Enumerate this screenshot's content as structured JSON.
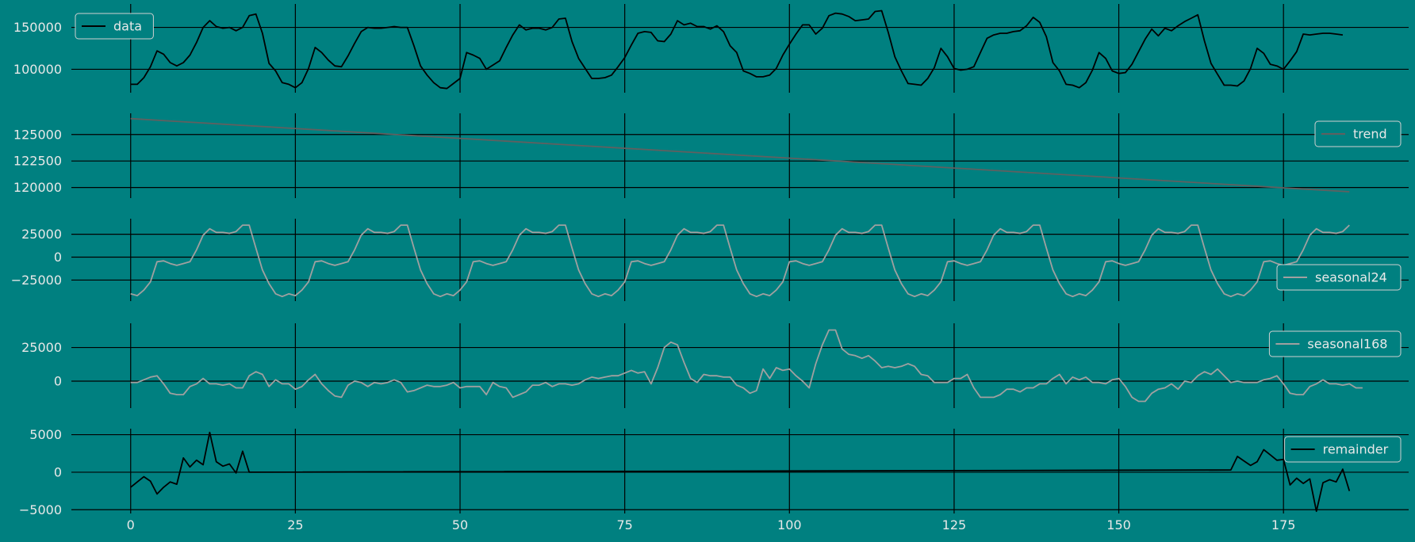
{
  "figure": {
    "background": "#008080",
    "line_color_dark": "#000000",
    "line_color_gray": "#a0a0a0",
    "trend_color": "#606060",
    "text_color": "#e8e8e8"
  },
  "chart_data": [
    {
      "type": "line",
      "series": [
        {
          "name": "data",
          "color": "#000000",
          "values": [
            82000,
            82000,
            90000,
            103000,
            122000,
            118000,
            108000,
            104000,
            108000,
            117000,
            132000,
            150000,
            158000,
            151000,
            149000,
            150000,
            146000,
            150000,
            164000,
            166000,
            143000,
            107000,
            98000,
            84000,
            82000,
            78000,
            84000,
            101000,
            126000,
            120000,
            111000,
            104000,
            103000,
            116000,
            131000,
            145000,
            150000,
            149000,
            149000,
            150000,
            151000,
            150000,
            150000,
            128000,
            104000,
            93000,
            84000,
            78000,
            77000,
            83000,
            89000,
            120000,
            117000,
            113000,
            100000,
            105000,
            110000,
            126000,
            141000,
            153000,
            147000,
            149000,
            149000,
            147000,
            150000,
            160000,
            161000,
            133000,
            113000,
            101000,
            89000,
            89000,
            90000,
            93000,
            103000,
            114000,
            129000,
            143000,
            145000,
            144000,
            134000,
            133000,
            142000,
            158000,
            153000,
            155000,
            151000,
            151000,
            148000,
            152000,
            145000,
            128000,
            120000,
            98000,
            95000,
            91000,
            91000,
            93000,
            101000,
            117000,
            130000,
            142000,
            153000,
            153000,
            142000,
            149000,
            164000,
            167000,
            166000,
            163000,
            158000,
            159000,
            160000,
            169000,
            170000,
            144000,
            115000,
            98000,
            83000,
            82000,
            81000,
            89000,
            102000,
            125000,
            115000,
            101000,
            99000,
            100000,
            103000,
            120000,
            137000,
            141000,
            143000,
            143000,
            145000,
            146000,
            152000,
            162000,
            156000,
            139000,
            108000,
            98000,
            82000,
            81000,
            78000,
            84000,
            99000,
            120000,
            113000,
            98000,
            95000,
            96000,
            106000,
            121000,
            136000,
            148000,
            140000,
            149000,
            146000,
            152000,
            157000,
            161000,
            165000,
            134000,
            107000,
            94000,
            81000,
            81000,
            80000,
            86000,
            101000,
            125000,
            119000,
            106000,
            104000,
            100000,
            110000,
            121000,
            142000,
            141000,
            142000,
            143000,
            143000,
            142000,
            141000
          ]
        }
      ],
      "ylim": [
        72000,
        178000
      ],
      "yticks": [
        100000,
        150000
      ],
      "legend_position": "top-left",
      "grid": true
    },
    {
      "type": "line",
      "series": [
        {
          "name": "trend",
          "color": "#606060",
          "values": [
            126500,
            119600
          ]
        }
      ],
      "ylim": [
        119000,
        127000
      ],
      "yticks": [
        120000,
        122500,
        125000
      ],
      "legend_position": "top-right",
      "grid": true
    },
    {
      "type": "line",
      "series": [
        {
          "name": "seasonal24",
          "color": "#a0a0a0",
          "pattern": [
            -40000,
            -42000,
            -36000,
            -27000,
            -5000,
            -4000,
            -7000,
            -9000,
            -7000,
            -5000,
            8000,
            24000,
            31000,
            27000,
            27000,
            26000,
            28000,
            35000,
            35000,
            10000,
            -14000,
            -29000,
            -40000,
            -43000
          ]
        }
      ],
      "ylim": [
        -48000,
        42000
      ],
      "yticks": [
        -25000,
        0,
        25000
      ],
      "legend_position": "bottom-right",
      "grid": true
    },
    {
      "type": "line",
      "series": [
        {
          "name": "seasonal168",
          "color": "#a0a0a0",
          "values": [
            -1000,
            -1000,
            1000,
            3000,
            4000,
            -2000,
            -9000,
            -10000,
            -10000,
            -4000,
            -2000,
            2000,
            -2000,
            -2000,
            -3000,
            -2000,
            -5000,
            -5000,
            4000,
            7000,
            5000,
            -4000,
            1000,
            -2000,
            -2000,
            -6000,
            -4000,
            1000,
            5000,
            -2000,
            -7000,
            -11000,
            -12000,
            -3000,
            0,
            -1000,
            -4000,
            -1000,
            -2000,
            -1000,
            1000,
            -1000,
            -8000,
            -7000,
            -5000,
            -3000,
            -4000,
            -4000,
            -3000,
            -1000,
            -5000,
            -4000,
            -4000,
            -4000,
            -10000,
            -1000,
            -4000,
            -5000,
            -12000,
            -10000,
            -8000,
            -3000,
            -3000,
            -1000,
            -4000,
            -2000,
            -2000,
            -3000,
            -2000,
            1000,
            3000,
            2000,
            3000,
            4000,
            4000,
            6000,
            8000,
            6000,
            7000,
            -2000,
            10000,
            25000,
            29000,
            27000,
            14000,
            2000,
            -1000,
            5000,
            4000,
            4000,
            3000,
            3000,
            -3000,
            -5000,
            -9000,
            -7000,
            9000,
            2000,
            10000,
            8000,
            9000,
            4000,
            0,
            -5000,
            13000,
            27000,
            38000,
            38000,
            24000,
            20000,
            19000,
            17000,
            19000,
            15000,
            10000,
            11000,
            10000,
            11000,
            13000,
            11000,
            5000,
            4000,
            -1000,
            -1000,
            -1000,
            2000,
            2000,
            5000,
            -5000,
            -12000,
            -12000,
            -12000,
            -10000,
            -6000,
            -6000,
            -8000,
            -5000,
            -5000,
            -2000,
            -2000,
            2000,
            5000,
            -2000,
            3000,
            1000,
            3000,
            -1000,
            -1000,
            -2000,
            1000,
            2000,
            -4000,
            -12000,
            -15000,
            -15000,
            -9000,
            -6000,
            -5000,
            -2000,
            -6000,
            0,
            -1000,
            4000,
            7000,
            5000,
            9000,
            4000,
            -1000,
            0,
            -1000,
            -1000,
            -1000,
            1000,
            2000,
            4000,
            -2000,
            -9000,
            -10000,
            -10000,
            -4000,
            -2000,
            1000,
            -2000,
            -2000,
            -3000,
            -2000,
            -5000,
            -5000
          ]
        }
      ],
      "ylim": [
        -20000,
        43000
      ],
      "yticks": [
        0,
        25000
      ],
      "legend_position": "top-right",
      "grid": true
    },
    {
      "type": "line",
      "series": [
        {
          "name": "remainder",
          "color": "#000000",
          "values": [
            -2000,
            -1300,
            -600,
            -1200,
            -2900,
            -2000,
            -1300,
            -1600,
            1900,
            700,
            1600,
            1000,
            5300,
            1400,
            800,
            1100,
            -100,
            2800,
            0
          ],
          "flat_to": [
            [
              167,
              300
            ]
          ],
          "tail": [
            [
              167,
              300
            ],
            [
              168,
              2100
            ],
            [
              169,
              1500
            ],
            [
              170,
              900
            ],
            [
              171,
              1400
            ],
            [
              172,
              3000
            ],
            [
              173,
              2300
            ],
            [
              174,
              1600
            ],
            [
              175,
              1700
            ],
            [
              176,
              -1700
            ],
            [
              177,
              -800
            ],
            [
              178,
              -1500
            ],
            [
              179,
              -900
            ],
            [
              180,
              -5200
            ],
            [
              181,
              -1400
            ],
            [
              182,
              -1000
            ],
            [
              183,
              -1300
            ],
            [
              184,
              400
            ],
            [
              185,
              -2500
            ]
          ]
        }
      ],
      "ylim": [
        -5500,
        5800
      ],
      "yticks": [
        -5000,
        0,
        5000
      ],
      "legend_position": "top-right",
      "grid": true
    }
  ],
  "x_axis": {
    "ticks": [
      0,
      25,
      50,
      75,
      100,
      125,
      150,
      175
    ],
    "range": [
      -9,
      194
    ],
    "last_index": 185
  }
}
